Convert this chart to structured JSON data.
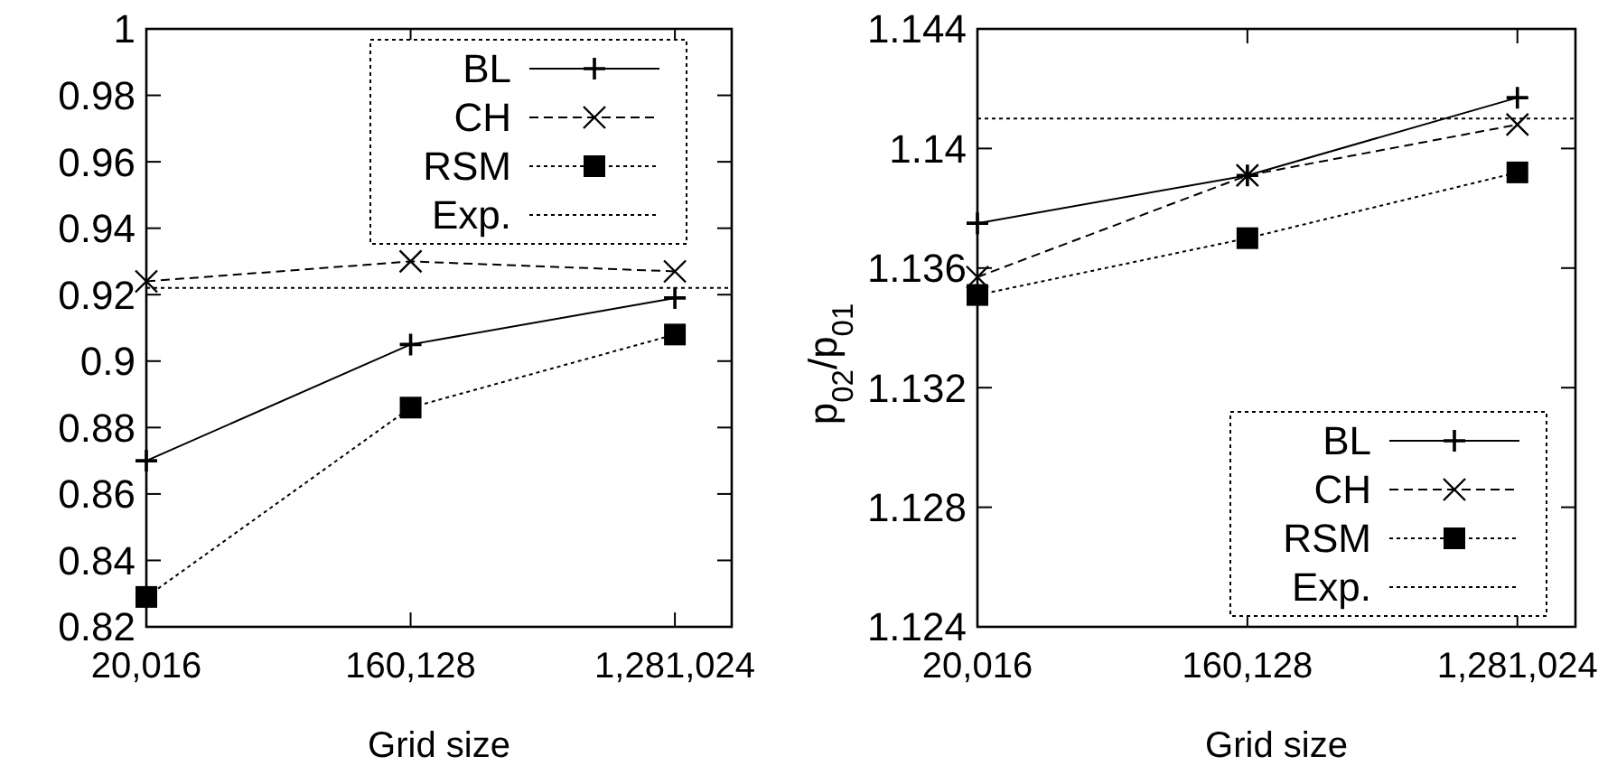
{
  "chart_data": [
    {
      "type": "line",
      "xlabel": "Grid size",
      "categories": [
        "20,016",
        "160,128",
        "1,281,024"
      ],
      "ylim": [
        0.82,
        1
      ],
      "yticks": [
        0.82,
        0.84,
        0.86,
        0.88,
        0.9,
        0.92,
        0.94,
        0.96,
        0.98,
        1
      ],
      "grid": false,
      "legend": "top right",
      "series": [
        {
          "name": "BL",
          "color": "#000000",
          "marker": "plus",
          "line_style": "solid",
          "values": [
            0.87,
            0.905,
            0.919
          ]
        },
        {
          "name": "CH",
          "color": "#000000",
          "marker": "cross",
          "line_style": "dashed",
          "values": [
            0.924,
            0.93,
            0.927
          ]
        },
        {
          "name": "RSM",
          "color": "#000000",
          "marker": "square",
          "line_style": "dotted",
          "values": [
            0.829,
            0.886,
            0.908
          ]
        }
      ],
      "ref_lines": [
        {
          "axis": "y",
          "value": 0.922,
          "label": "Exp.",
          "color": "#000000",
          "line_style": "dotted"
        }
      ]
    },
    {
      "type": "line",
      "xlabel": "Grid size",
      "ylabel": "p$_{02}$/p$_{01}$",
      "categories": [
        "20,016",
        "160,128",
        "1,281,024"
      ],
      "ylim": [
        1.124,
        1.144
      ],
      "yticks": [
        1.124,
        1.128,
        1.132,
        1.136,
        1.14,
        1.144
      ],
      "grid": false,
      "legend": "bottom right",
      "series": [
        {
          "name": "BL",
          "color": "#000000",
          "marker": "plus",
          "line_style": "solid",
          "values": [
            1.1375,
            1.1391,
            1.1417
          ]
        },
        {
          "name": "CH",
          "color": "#000000",
          "marker": "cross",
          "line_style": "dashed",
          "values": [
            1.1357,
            1.1391,
            1.1408
          ]
        },
        {
          "name": "RSM",
          "color": "#000000",
          "marker": "square",
          "line_style": "dotted",
          "values": [
            1.1351,
            1.137,
            1.1392
          ]
        }
      ],
      "ref_lines": [
        {
          "axis": "y",
          "value": 1.141,
          "label": "Exp.",
          "color": "#000000",
          "line_style": "dotted"
        }
      ]
    }
  ]
}
